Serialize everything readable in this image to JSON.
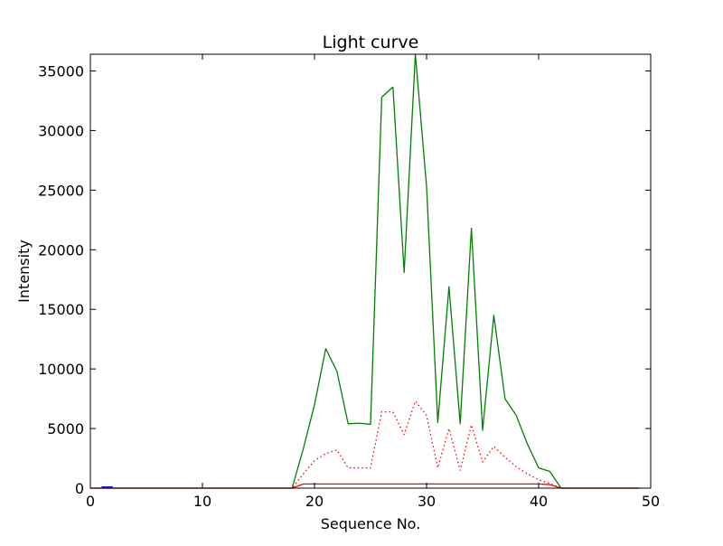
{
  "chart_data": {
    "type": "line",
    "title": "Light curve",
    "xlabel": "Sequence No.",
    "ylabel": "Intensity",
    "xlim": [
      0,
      50
    ],
    "ylim": [
      0,
      36400
    ],
    "xticks": [
      0,
      10,
      20,
      30,
      40,
      50
    ],
    "yticks": [
      0,
      5000,
      10000,
      15000,
      20000,
      25000,
      30000,
      35000
    ],
    "grid": false,
    "legend": "none",
    "series": [
      {
        "color": "#008000",
        "style": "solid",
        "x": [
          0,
          1,
          2,
          3,
          4,
          5,
          6,
          7,
          8,
          9,
          10,
          11,
          12,
          13,
          14,
          15,
          16,
          17,
          18,
          19,
          20,
          21,
          22,
          23,
          24,
          25,
          26,
          27,
          28,
          29,
          30,
          31,
          32,
          33,
          34,
          35,
          36,
          37,
          38,
          39,
          40,
          41,
          42,
          43,
          44,
          45,
          46,
          47,
          48,
          49
        ],
        "values": [
          0,
          0,
          0,
          0,
          0,
          0,
          0,
          0,
          0,
          0,
          0,
          0,
          0,
          0,
          0,
          0,
          0,
          0,
          0,
          3300,
          7000,
          11700,
          9800,
          5400,
          5450,
          5350,
          32800,
          33650,
          18100,
          36400,
          25300,
          5500,
          16900,
          5400,
          21800,
          4850,
          14500,
          7500,
          6100,
          3700,
          1700,
          1400,
          0,
          0,
          0,
          0,
          0,
          0,
          0,
          0
        ]
      },
      {
        "color": "#ff0000",
        "style": "dotted",
        "x": [
          0,
          1,
          2,
          3,
          4,
          5,
          6,
          7,
          8,
          9,
          10,
          11,
          12,
          13,
          14,
          15,
          16,
          17,
          18,
          19,
          20,
          21,
          22,
          23,
          24,
          25,
          26,
          27,
          28,
          29,
          30,
          31,
          32,
          33,
          34,
          35,
          36,
          37,
          38,
          39,
          40,
          41,
          42,
          43,
          44,
          45,
          46,
          47,
          48,
          49
        ],
        "values": [
          0,
          0,
          0,
          0,
          0,
          0,
          0,
          0,
          0,
          0,
          0,
          0,
          0,
          0,
          0,
          0,
          0,
          0,
          0,
          1200,
          2300,
          2900,
          3200,
          1700,
          1700,
          1700,
          6400,
          6400,
          4500,
          7300,
          6100,
          1700,
          5000,
          1500,
          5300,
          2200,
          3500,
          2600,
          1800,
          1200,
          700,
          400,
          0,
          0,
          0,
          0,
          0,
          0,
          0,
          0
        ]
      },
      {
        "color": "#ff0000",
        "style": "solid",
        "x": [
          0,
          1,
          2,
          3,
          4,
          5,
          6,
          7,
          8,
          9,
          10,
          11,
          12,
          13,
          14,
          15,
          16,
          17,
          18,
          19,
          20,
          21,
          22,
          23,
          24,
          25,
          26,
          27,
          28,
          29,
          30,
          31,
          32,
          33,
          34,
          35,
          36,
          37,
          38,
          39,
          40,
          41,
          42,
          43,
          44,
          45,
          46,
          47,
          48,
          49
        ],
        "values": [
          0,
          0,
          0,
          0,
          0,
          0,
          0,
          0,
          0,
          0,
          0,
          0,
          0,
          0,
          0,
          0,
          0,
          0,
          0,
          350,
          350,
          350,
          350,
          350,
          350,
          350,
          350,
          350,
          350,
          350,
          350,
          350,
          350,
          350,
          350,
          350,
          350,
          350,
          350,
          350,
          350,
          300,
          0,
          0,
          0,
          0,
          0,
          0,
          0,
          0
        ]
      },
      {
        "color": "#0000ff",
        "style": "solid",
        "x": [
          1,
          2
        ],
        "values": [
          100,
          100
        ]
      }
    ]
  }
}
